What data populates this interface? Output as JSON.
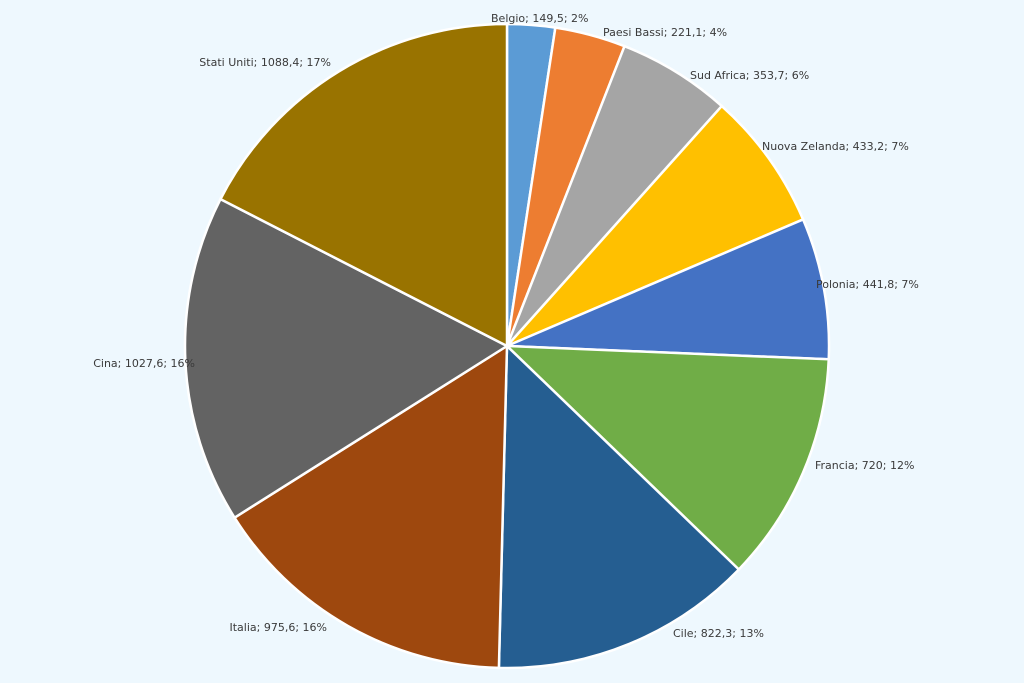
{
  "chart_data": {
    "type": "pie",
    "title": "",
    "start": "12 o'clock",
    "direction": "clockwise",
    "slices": [
      {
        "name": "Belgio",
        "value": 149.5,
        "percent": 2,
        "label": "Belgio; 149,5; 2%",
        "color": "#5b9bd5"
      },
      {
        "name": "Paesi Bassi",
        "value": 221.1,
        "percent": 4,
        "label": "Paesi Bassi; 221,1; 4%",
        "color": "#ed7d31"
      },
      {
        "name": "Sud Africa",
        "value": 353.7,
        "percent": 6,
        "label": "Sud Africa; 353,7; 6%",
        "color": "#a5a5a5"
      },
      {
        "name": "Nuova Zelanda",
        "value": 433.2,
        "percent": 7,
        "label": "Nuova Zelanda; 433,2; 7%",
        "color": "#ffc000"
      },
      {
        "name": "Polonia",
        "value": 441.8,
        "percent": 7,
        "label": "Polonia; 441,8; 7%",
        "color": "#4472c4"
      },
      {
        "name": "Francia",
        "value": 720,
        "percent": 12,
        "label": "Francia; 720; 12%",
        "color": "#70ad47"
      },
      {
        "name": "Cile",
        "value": 822.3,
        "percent": 13,
        "label": "Cile; 822,3; 13%",
        "color": "#255e91"
      },
      {
        "name": "Italia",
        "value": 975.6,
        "percent": 16,
        "label": "Italia; 975,6; 16%",
        "color": "#9e480e"
      },
      {
        "name": "Cina",
        "value": 1027.6,
        "percent": 16,
        "label": "Cina; 1027,6; 16%",
        "color": "#636363"
      },
      {
        "name": "Stati Uniti",
        "value": 1088.4,
        "percent": 17,
        "label": "Stati Uniti; 1088,4; 17%",
        "color": "#997300"
      }
    ]
  }
}
